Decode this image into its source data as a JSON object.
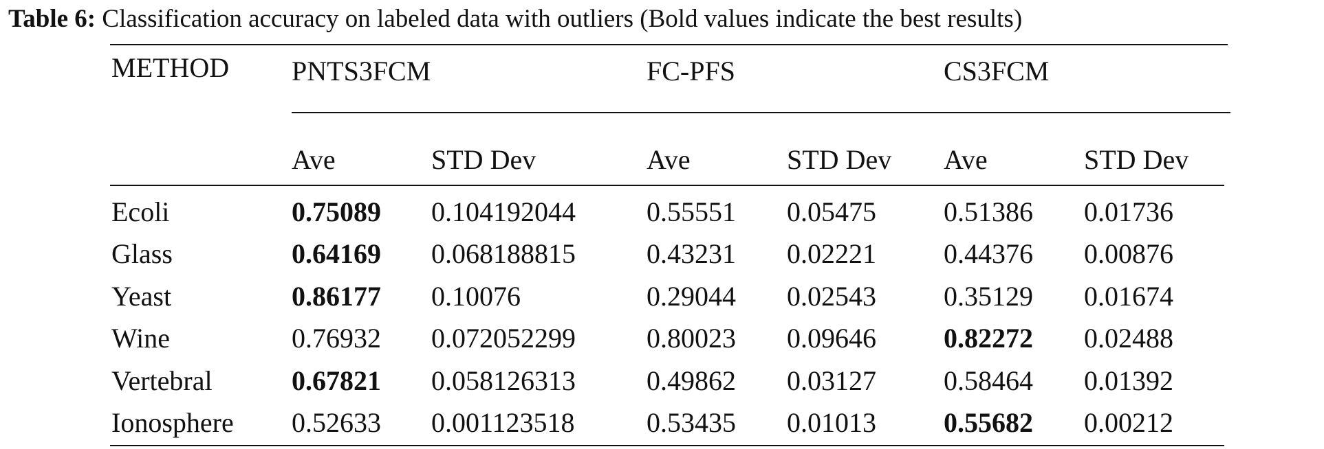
{
  "caption": {
    "label": "Table 6:",
    "text": "Classification accuracy on labeled data with outliers (Bold values indicate the best results)"
  },
  "table": {
    "method_header": "METHOD",
    "groups": [
      "PNTS3FCM",
      "FC-PFS",
      "CS3FCM"
    ],
    "subheaders": [
      "Ave",
      "STD Dev",
      "Ave",
      "STD Dev",
      "Ave",
      "STD Dev"
    ],
    "rows": [
      {
        "name": "Ecoli",
        "values": [
          "0.75089",
          "0.104192044",
          "0.55551",
          "0.05475",
          "0.51386",
          "0.01736"
        ],
        "bold": [
          true,
          false,
          false,
          false,
          false,
          false
        ]
      },
      {
        "name": "Glass",
        "values": [
          "0.64169",
          "0.068188815",
          "0.43231",
          "0.02221",
          "0.44376",
          "0.00876"
        ],
        "bold": [
          true,
          false,
          false,
          false,
          false,
          false
        ]
      },
      {
        "name": "Yeast",
        "values": [
          "0.86177",
          "0.10076",
          "0.29044",
          "0.02543",
          "0.35129",
          "0.01674"
        ],
        "bold": [
          true,
          false,
          false,
          false,
          false,
          false
        ]
      },
      {
        "name": "Wine",
        "values": [
          "0.76932",
          "0.072052299",
          "0.80023",
          "0.09646",
          "0.82272",
          "0.02488"
        ],
        "bold": [
          false,
          false,
          false,
          false,
          true,
          false
        ]
      },
      {
        "name": "Vertebral",
        "values": [
          "0.67821",
          "0.058126313",
          "0.49862",
          "0.03127",
          "0.58464",
          "0.01392"
        ],
        "bold": [
          true,
          false,
          false,
          false,
          false,
          false
        ]
      },
      {
        "name": "Ionosphere",
        "values": [
          "0.52633",
          "0.001123518",
          "0.53435",
          "0.01013",
          "0.55682",
          "0.00212"
        ],
        "bold": [
          false,
          false,
          false,
          false,
          true,
          false
        ]
      }
    ]
  }
}
